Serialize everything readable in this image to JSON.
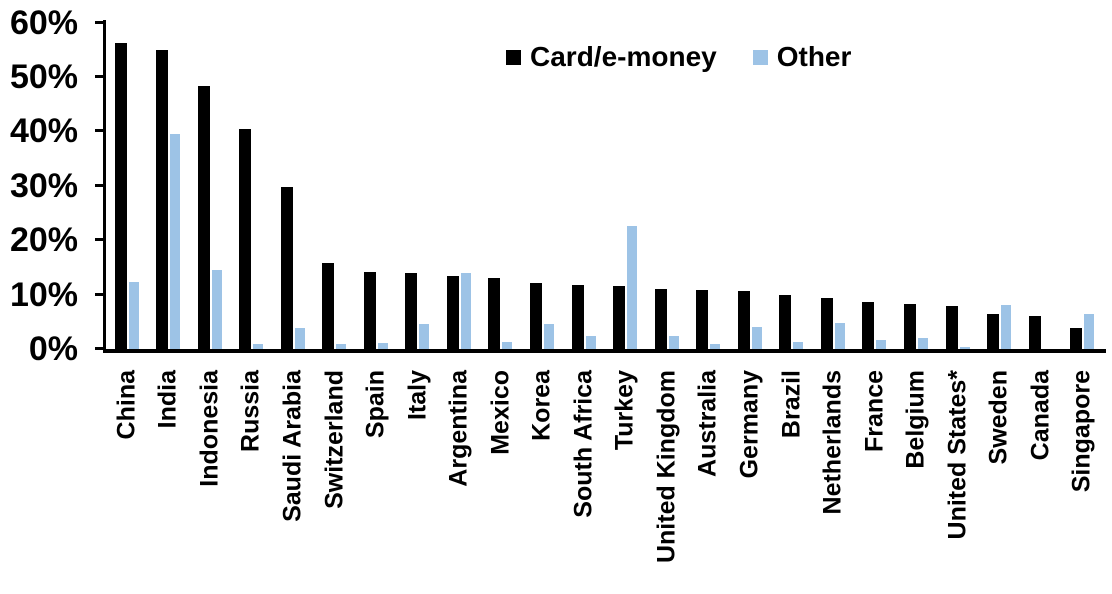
{
  "chart_data": {
    "type": "bar",
    "categories": [
      "China",
      "India",
      "Indonesia",
      "Russia",
      "Saudi Arabia",
      "Switzerland",
      "Spain",
      "Italy",
      "Argentina",
      "Mexico",
      "Korea",
      "South Africa",
      "Turkey",
      "United Kingdom",
      "Australia",
      "Germany",
      "Brazil",
      "Netherlands",
      "France",
      "Belgium",
      "United States*",
      "Sweden",
      "Canada",
      "Singapore"
    ],
    "series": [
      {
        "name": "Card/e-money",
        "color": "#000000",
        "values": [
          56.2,
          55.0,
          48.3,
          40.5,
          29.8,
          15.8,
          14.2,
          13.9,
          13.5,
          13.0,
          12.2,
          11.7,
          11.6,
          11.1,
          10.8,
          10.6,
          10.0,
          9.3,
          8.6,
          8.2,
          7.9,
          6.5,
          6.0,
          3.9
        ]
      },
      {
        "name": "Other",
        "color": "#9DC3E6",
        "values": [
          12.3,
          39.5,
          14.6,
          1.0,
          3.9,
          1.0,
          1.1,
          4.6,
          13.9,
          1.2,
          4.6,
          2.4,
          22.6,
          2.3,
          1.0,
          4.0,
          1.2,
          4.8,
          1.6,
          2.1,
          0.3,
          8.0,
          0.0,
          6.5
        ]
      }
    ],
    "ylim": [
      0,
      60
    ],
    "yticks": [
      "60%",
      "50%",
      "40%",
      "30%",
      "20%",
      "10%",
      "0%"
    ],
    "ytick_values": [
      60,
      50,
      40,
      30,
      20,
      10,
      0
    ],
    "legend_position": "top-center",
    "grid": false,
    "axis_color": "#000000"
  }
}
